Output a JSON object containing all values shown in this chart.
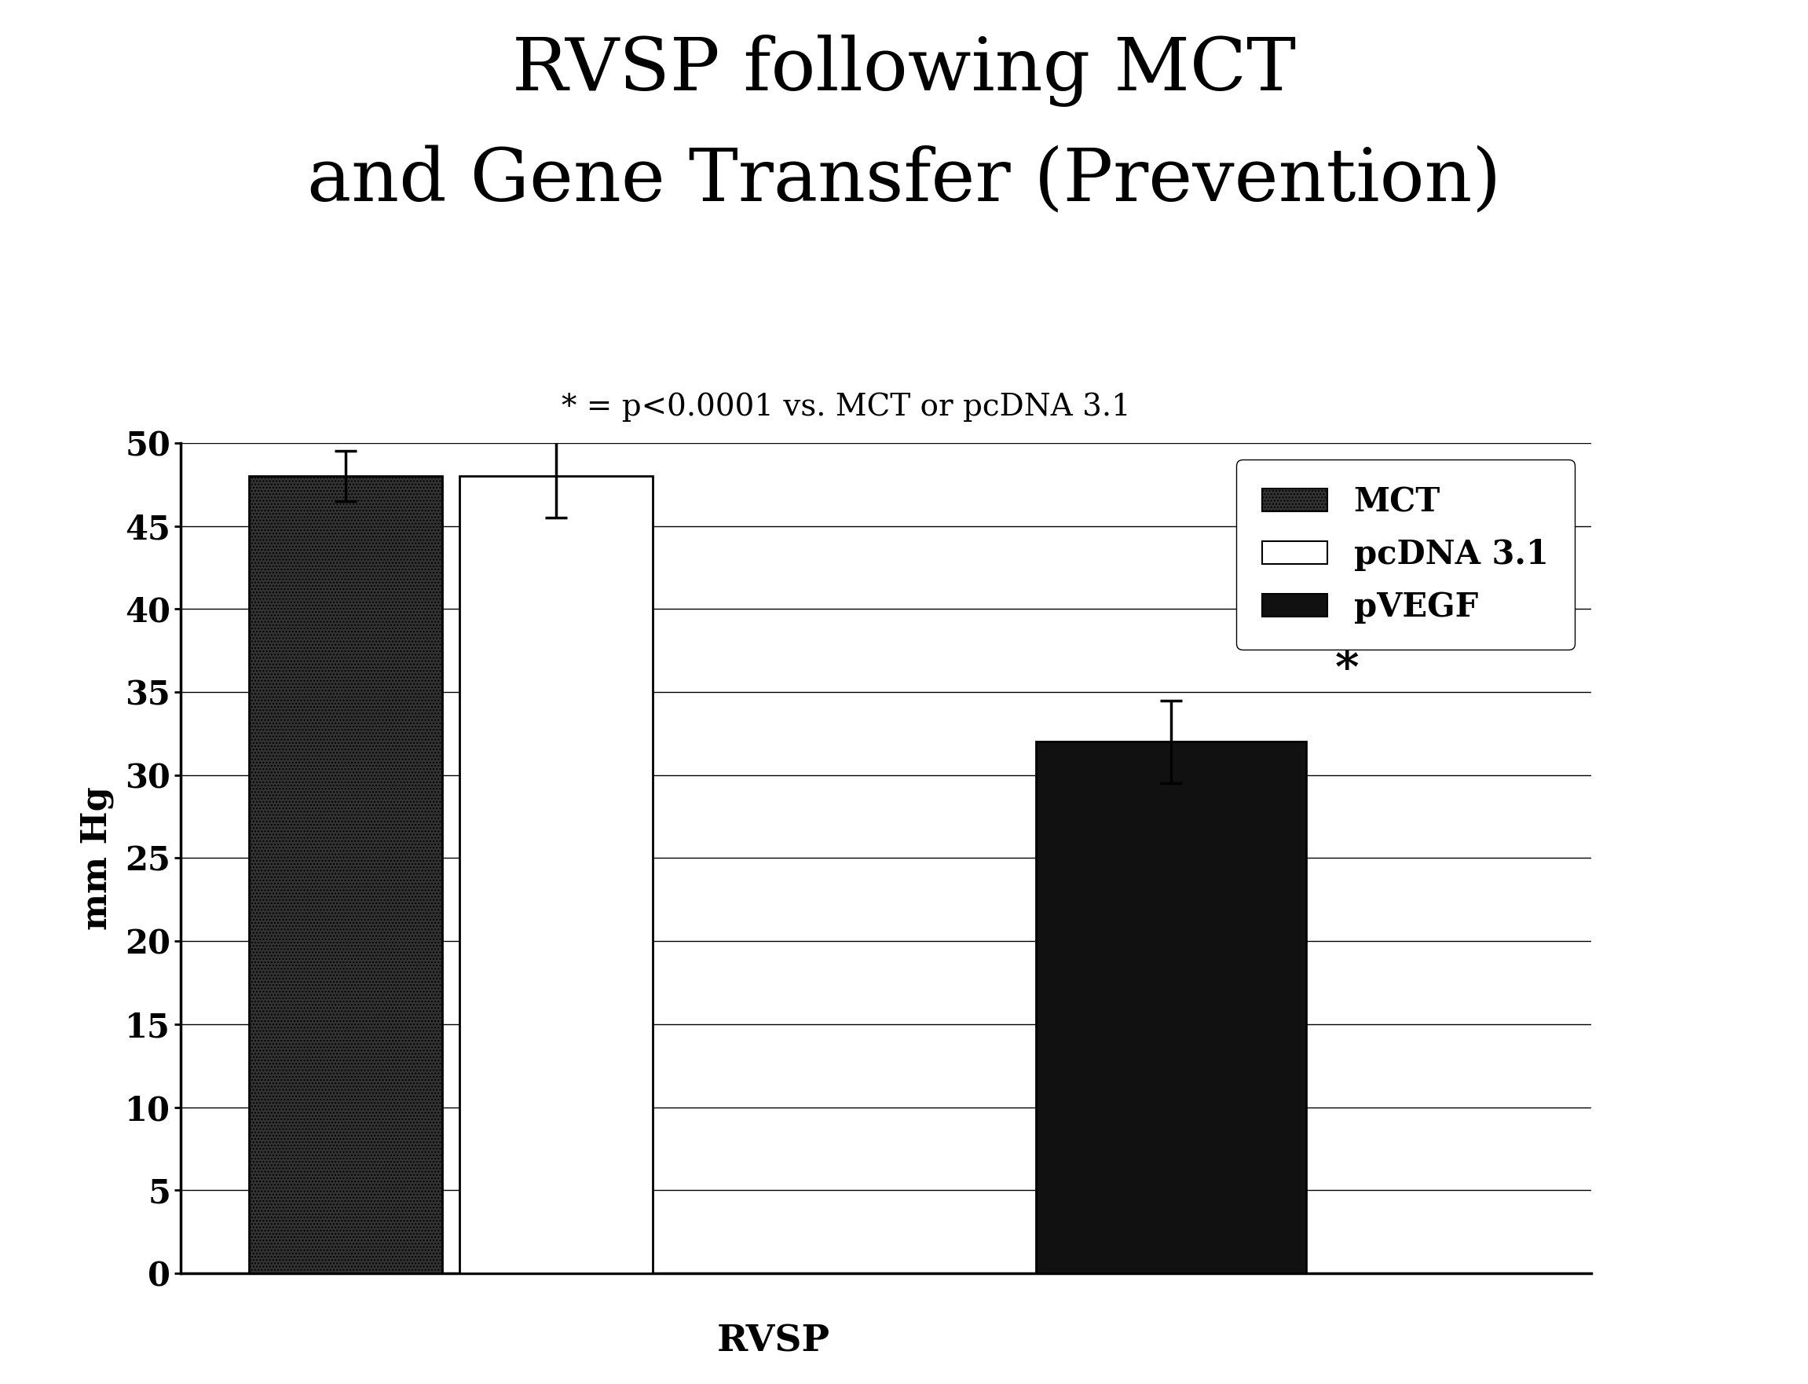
{
  "title_line1": "RVSP following MCT",
  "title_line2": "and Gene Transfer (Prevention)",
  "annotation": "* = p<0.0001 vs. MCT or pcDNA 3.1",
  "xlabel": "RVSP",
  "ylabel": "mm Hg",
  "bar1_label": "MCT",
  "bar2_label": "pcDNA 3.1",
  "bar3_label": "pVEGF",
  "bar1_value": 48.0,
  "bar2_value": 48.0,
  "bar3_value": 32.0,
  "bar1_error": 1.5,
  "bar2_error": 2.5,
  "bar3_error": 2.5,
  "bar1_color": "#333333",
  "bar2_color": "#ffffff",
  "bar3_color": "#111111",
  "ylim": [
    0,
    50
  ],
  "yticks": [
    0,
    5,
    10,
    15,
    20,
    25,
    30,
    35,
    40,
    45,
    50
  ],
  "significance_star": "*",
  "background_color": "#ffffff",
  "title_fontsize": 68,
  "axis_label_fontsize": 32,
  "tick_fontsize": 30,
  "legend_fontsize": 30,
  "annotation_fontsize": 28,
  "star_fontsize": 42
}
